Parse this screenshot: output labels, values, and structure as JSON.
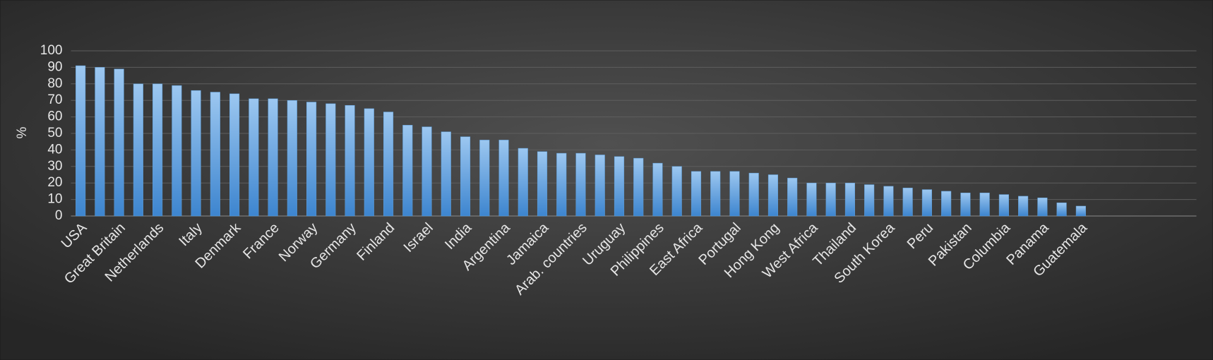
{
  "chart_data": {
    "type": "bar",
    "y_label": "%",
    "categories": [
      "USA",
      null,
      "Great Britain",
      null,
      "Netherlands",
      null,
      "Italy",
      null,
      "Denmark",
      null,
      "France",
      null,
      "Norway",
      null,
      "Germany",
      null,
      "Finland",
      null,
      "Israel",
      null,
      "India",
      null,
      "Argentina",
      null,
      "Jamaica",
      null,
      "Arab. countries",
      null,
      "Uruguay",
      null,
      "Philippines",
      null,
      "East Africa",
      null,
      "Portugal",
      null,
      "Hong Kong",
      null,
      "West Africa",
      null,
      "Thailand",
      null,
      "South Korea",
      null,
      "Peru",
      null,
      "Pakistan",
      null,
      "Columbia",
      null,
      "Panama",
      null,
      "Guatemala"
    ],
    "values": [
      91,
      90,
      89,
      80,
      80,
      79,
      76,
      75,
      74,
      71,
      71,
      70,
      69,
      68,
      67,
      65,
      63,
      55,
      54,
      51,
      48,
      46,
      46,
      41,
      39,
      38,
      38,
      37,
      36,
      35,
      32,
      30,
      27,
      27,
      27,
      26,
      25,
      23,
      20,
      20,
      20,
      19,
      18,
      17,
      16,
      15,
      14,
      14,
      13,
      12,
      11,
      8,
      6
    ],
    "color": "#5b9bd5",
    "ylim": [
      0,
      100
    ],
    "yticks": [
      0,
      10,
      20,
      30,
      40,
      50,
      60,
      70,
      80,
      90,
      100
    ],
    "grid": true
  }
}
